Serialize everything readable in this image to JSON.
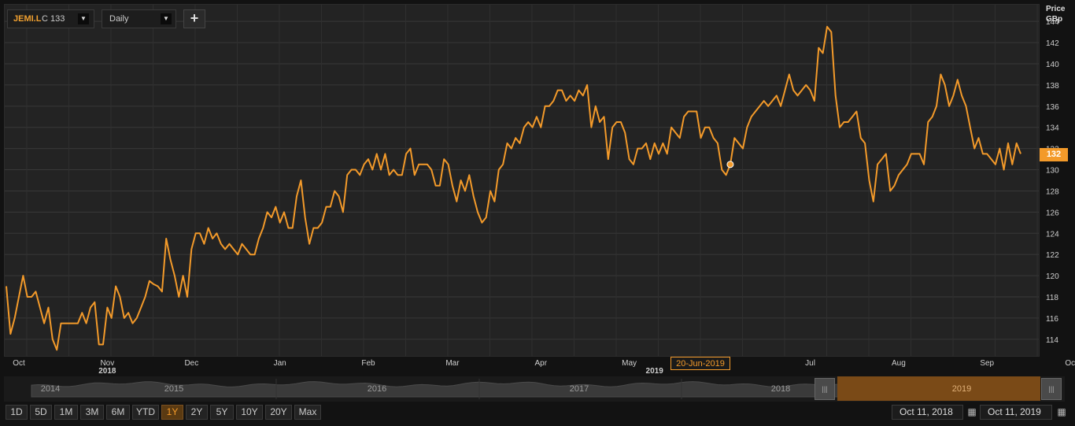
{
  "toolbar": {
    "symbol": "JEMI.L",
    "close_label": "C 133",
    "interval": "Daily",
    "add_label": "+",
    "dropdown_glyph": "▼"
  },
  "price_axis": {
    "title_line1": "Price",
    "title_line2": "GBp",
    "last_price": "132"
  },
  "tooltip": {
    "date": "20-Jun-2019"
  },
  "navigator": {
    "years": [
      "2014",
      "2015",
      "2016",
      "2017",
      "2018",
      "2019"
    ],
    "handle_glyph": "|||"
  },
  "range_buttons": [
    "1D",
    "5D",
    "1M",
    "3M",
    "6M",
    "YTD",
    "1Y",
    "2Y",
    "5Y",
    "10Y",
    "20Y",
    "Max"
  ],
  "active_range": "1Y",
  "dates": {
    "from": "Oct 11, 2018",
    "to": "Oct 11, 2019"
  },
  "colors": {
    "line": "#f39a2a",
    "accent": "#f39a2a",
    "background": "#232323",
    "grid": "#383838"
  },
  "icons": {
    "calendar": "calendar-icon",
    "dropdown": "chevron-down-icon",
    "add": "plus-icon"
  },
  "chart_data": {
    "type": "line",
    "title": "",
    "xlabel": "",
    "ylabel": "Price GBp",
    "ylim": [
      112.5,
      145.5
    ],
    "y_ticks": [
      114,
      116,
      118,
      120,
      122,
      124,
      126,
      128,
      130,
      132,
      134,
      136,
      138,
      140,
      142,
      144
    ],
    "x_ticks": [
      {
        "label": "Oct",
        "index": 3
      },
      {
        "label": "Nov",
        "index": 24
      },
      {
        "label": "Dec",
        "index": 44
      },
      {
        "label": "Jan",
        "index": 65
      },
      {
        "label": "Feb",
        "index": 86
      },
      {
        "label": "Mar",
        "index": 106
      },
      {
        "label": "Apr",
        "index": 127
      },
      {
        "label": "May",
        "index": 148
      },
      {
        "label": "Jul",
        "index": 191
      },
      {
        "label": "Aug",
        "index": 212
      },
      {
        "label": "Sep",
        "index": 233
      },
      {
        "label": "Oct",
        "index": 253
      }
    ],
    "year_labels": [
      {
        "label": "2018",
        "index": 24
      },
      {
        "label": "2019",
        "index": 154
      }
    ],
    "grid": true,
    "highlight_index": 172,
    "series": [
      {
        "values": [
          119,
          114.5,
          116,
          118,
          120,
          118,
          118,
          118.5,
          117,
          115.5,
          117,
          114,
          113,
          115.5,
          115.5,
          115.5,
          115.5,
          115.5,
          116.5,
          115.5,
          117,
          117.5,
          113.5,
          113.5,
          117,
          116,
          119,
          118,
          116,
          116.5,
          115.5,
          116,
          117,
          118,
          119.5,
          119.2,
          119,
          118.5,
          123.5,
          121.5,
          120,
          118,
          120,
          118,
          122.5,
          124,
          124,
          123,
          124.5,
          123.5,
          124,
          123,
          122.5,
          123,
          122.5,
          122,
          123,
          122.5,
          122,
          122,
          123.5,
          124.5,
          126,
          125.5,
          126.5,
          125,
          126,
          124.5,
          124.5,
          127.5,
          129,
          125.5,
          123,
          124.5,
          124.5,
          125,
          126.5,
          126.5,
          128,
          127.5,
          126,
          129.5,
          130,
          130,
          129.5,
          130.5,
          131,
          130,
          131.5,
          130,
          131.5,
          129.5,
          130,
          129.5,
          129.5,
          131.5,
          132,
          129.5,
          130.5,
          130.5,
          130.5,
          130,
          128.5,
          128.5,
          131,
          130.5,
          128.5,
          127,
          129,
          128,
          129.5,
          127.5,
          126,
          125,
          125.5,
          128,
          127,
          130,
          130.5,
          132.5,
          132,
          133,
          132.5,
          134,
          134.5,
          134,
          135,
          134,
          136,
          136,
          136.5,
          137.5,
          137.5,
          136.5,
          137,
          136.5,
          137.5,
          137,
          138,
          134,
          136,
          134.5,
          135,
          131,
          134,
          134.5,
          134.5,
          133.5,
          131,
          130.5,
          132,
          132,
          132.5,
          131,
          132.5,
          131.5,
          132.5,
          131.5,
          134,
          133.5,
          133,
          135,
          135.5,
          135.5,
          135.5,
          133,
          134,
          134,
          133,
          132.5,
          130,
          129.5,
          130.5,
          133,
          132.5,
          132,
          134,
          135,
          135.5,
          136,
          136.5,
          136,
          136.5,
          137,
          136,
          137.5,
          139,
          137.5,
          137,
          137.5,
          138,
          137.5,
          136.5,
          141.5,
          141,
          143.5,
          143,
          137,
          134,
          134.5,
          134.5,
          135,
          135.5,
          133,
          132.5,
          129,
          127,
          130.5,
          131,
          131.5,
          128,
          128.5,
          129.5,
          130,
          130.5,
          131.5,
          131.5,
          131.5,
          130.5,
          134.5,
          135,
          136,
          139,
          138,
          136,
          137,
          138.5,
          137,
          136,
          134,
          132,
          133,
          131.5,
          131.5,
          131,
          130.5,
          132,
          130,
          132.5,
          130.5,
          132.5,
          131.5
        ]
      }
    ]
  }
}
